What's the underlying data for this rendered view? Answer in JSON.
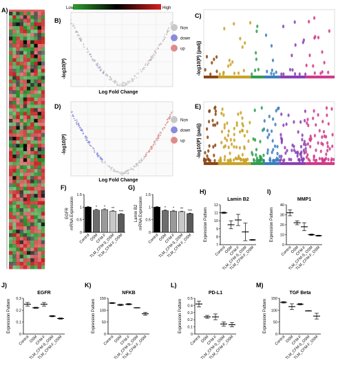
{
  "legend_scale": {
    "low": "Low",
    "high": "High",
    "colors": [
      "#2f9f2f",
      "#000000",
      "#d61f1f"
    ]
  },
  "heatmap_colors": {
    "green": "#1f8a1f",
    "black": "#000000",
    "red": "#c21a1a"
  },
  "volcano": {
    "ylabel": "-log10(P)",
    "xlabel": "Log Fold Change",
    "legend": [
      {
        "label": "Non",
        "color": "#c8c8c8"
      },
      {
        "label": "down",
        "color": "#8a8ae0"
      },
      {
        "label": "up",
        "color": "#e08a8a"
      }
    ]
  },
  "manhattan": {
    "ylabel": "-log10(P) (padj)",
    "group_colors": [
      "#8b4513",
      "#c9a227",
      "#2e9e4f",
      "#3a7dbf",
      "#8a3fb5",
      "#d03a8a"
    ]
  },
  "panel_labels": {
    "A": "A)",
    "B": "B)",
    "C": "C)",
    "D": "D)",
    "E": "E)",
    "F": "F)",
    "G": "G)",
    "H": "H)",
    "I": "I)",
    "J": "J)",
    "K": "K)",
    "L": "L)",
    "M": "M)"
  },
  "chart_data": [
    {
      "id": "F",
      "type": "bar",
      "title": "",
      "ylabel": "EGFR\nmRNA Expression",
      "categories": [
        "Control",
        "OSM",
        "CFM-F",
        "TLM_CFM-S_OSM",
        "TLM_CFM-F_OSM"
      ],
      "values": [
        1.0,
        0.88,
        0.9,
        0.84,
        0.72
      ],
      "errors": [
        0.02,
        0.03,
        0.03,
        0.02,
        0.02
      ],
      "significance": [
        "",
        "*",
        "*",
        "**",
        "***"
      ],
      "bar_colors": [
        "#000000",
        "#6e6e6e",
        "#9a9a9a",
        "#c8c8c8",
        "#5a5a5a"
      ],
      "ylim": [
        0,
        1.5
      ],
      "yticks": [
        0.0,
        0.5,
        1.0,
        1.5
      ]
    },
    {
      "id": "G",
      "type": "bar",
      "title": "",
      "ylabel": "Lamin B2\nmRNA Expression",
      "categories": [
        "Control",
        "OSM",
        "CFM-F",
        "TLM_CFM-S_OSM",
        "TLM_CFM-F_OSM"
      ],
      "values": [
        1.0,
        0.86,
        0.84,
        0.82,
        0.74
      ],
      "errors": [
        0.02,
        0.03,
        0.03,
        0.02,
        0.02
      ],
      "significance": [
        "",
        "*",
        "*",
        "**",
        "***"
      ],
      "bar_colors": [
        "#000000",
        "#6e6e6e",
        "#9a9a9a",
        "#c8c8c8",
        "#5a5a5a"
      ],
      "ylim": [
        0,
        1.5
      ],
      "yticks": [
        0.0,
        0.5,
        1.0,
        1.5
      ]
    },
    {
      "id": "H",
      "type": "scatter",
      "title": "Lamin B2",
      "ylabel": "Expression Pattern",
      "categories": [
        "Control",
        "OSM",
        "CFM-F",
        "TLM_CFM-S_OSM",
        "TLM_CFM-F_OSM"
      ],
      "values": [
        11.0,
        9.5,
        10.1,
        8.6,
        7.6
      ],
      "errors": [
        0.1,
        0.5,
        0.7,
        1.1,
        0.05
      ],
      "ylim": [
        7,
        12
      ],
      "yticks": [
        7,
        8,
        9,
        10,
        11,
        12
      ]
    },
    {
      "id": "I",
      "type": "scatter",
      "title": "MMP1",
      "ylabel": "Expression Pattern",
      "categories": [
        "Control",
        "OSM",
        "CFM-F",
        "TLM_CFM-S_OSM",
        "TLM_CFM-F_OSM"
      ],
      "values": [
        32,
        22,
        18,
        10,
        9
      ],
      "errors": [
        3,
        2,
        4,
        0.8,
        0.5
      ],
      "ylim": [
        0,
        40
      ],
      "yticks": [
        0,
        10,
        20,
        30,
        40
      ]
    },
    {
      "id": "J",
      "type": "scatter",
      "title": "EGFR",
      "ylabel": "Expression Pattern",
      "categories": [
        "Control",
        "OSM",
        "CFM-F",
        "TLM_CFM-S_OSM",
        "TLM_CFM-F_OSM"
      ],
      "values": [
        0.25,
        0.22,
        0.25,
        0.15,
        0.13
      ],
      "errors": [
        0.015,
        0.005,
        0.015,
        0.005,
        0.005
      ],
      "ylim": [
        0.0,
        0.3
      ],
      "yticks": [
        0.0,
        0.1,
        0.2,
        0.3
      ]
    },
    {
      "id": "K",
      "type": "scatter",
      "title": "NFKB",
      "ylabel": "Expression Pattern",
      "categories": [
        "Control",
        "OSM",
        "CFM-F",
        "TLM_CFM-S_OSM",
        "TLM_CFM-F_OSM"
      ],
      "values": [
        130,
        122,
        125,
        110,
        85
      ],
      "errors": [
        2,
        3,
        3,
        1,
        6
      ],
      "ylim": [
        0,
        150
      ],
      "yticks": [
        0,
        50,
        100,
        150
      ]
    },
    {
      "id": "L",
      "type": "scatter",
      "title": "PD-L1",
      "ylabel": "Expression Pattern",
      "categories": [
        "Control",
        "OSM",
        "CFM-F",
        "TLM_CFM-S_OSM",
        "TLM_CFM-F_OSM"
      ],
      "values": [
        0.42,
        0.24,
        0.24,
        0.14,
        0.13
      ],
      "errors": [
        0.04,
        0.02,
        0.04,
        0.03,
        0.03
      ],
      "ylim": [
        0.0,
        0.5
      ],
      "yticks": [
        0.0,
        0.1,
        0.2,
        0.3,
        0.4,
        0.5
      ]
    },
    {
      "id": "M",
      "type": "scatter",
      "title": "TGF Beta",
      "ylabel": "Expression Pattern",
      "categories": [
        "Control",
        "OSM",
        "CFM-F",
        "TLM_CFM-S_OSM",
        "TLM_CFM-F_OSM"
      ],
      "values": [
        133,
        115,
        125,
        97,
        75
      ],
      "errors": [
        3,
        12,
        3,
        1,
        12
      ],
      "ylim": [
        0,
        150
      ],
      "yticks": [
        0,
        50,
        100,
        150
      ]
    }
  ]
}
